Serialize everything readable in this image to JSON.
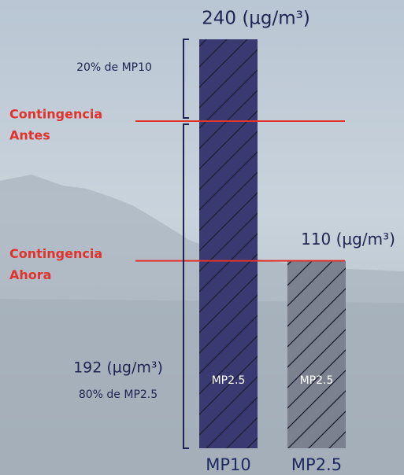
{
  "chart_data": {
    "type": "bar",
    "categories": [
      "MP10",
      "MP2.5"
    ],
    "values": [
      240,
      110
    ],
    "value_labels": [
      "240 (µg/m³)",
      "110 (µg/m³)"
    ],
    "inner_labels": [
      "MP2.5",
      "MP2.5"
    ],
    "colors": [
      "#3a3a72",
      "#7c8190"
    ],
    "ylim": [
      0,
      240
    ],
    "thresholds": [
      {
        "label": [
          "Contingencia",
          "Antes"
        ],
        "value": 192,
        "color": "#e0332e"
      },
      {
        "label": [
          "Contingencia",
          "Ahora"
        ],
        "value": 110,
        "color": "#e0332e"
      }
    ],
    "brackets": [
      {
        "labels": [
          "20% de MP10"
        ],
        "range": [
          192,
          240
        ]
      },
      {
        "labels": [
          "192 (µg/m³)",
          "80% de MP2.5"
        ],
        "range": [
          0,
          192
        ]
      }
    ]
  }
}
